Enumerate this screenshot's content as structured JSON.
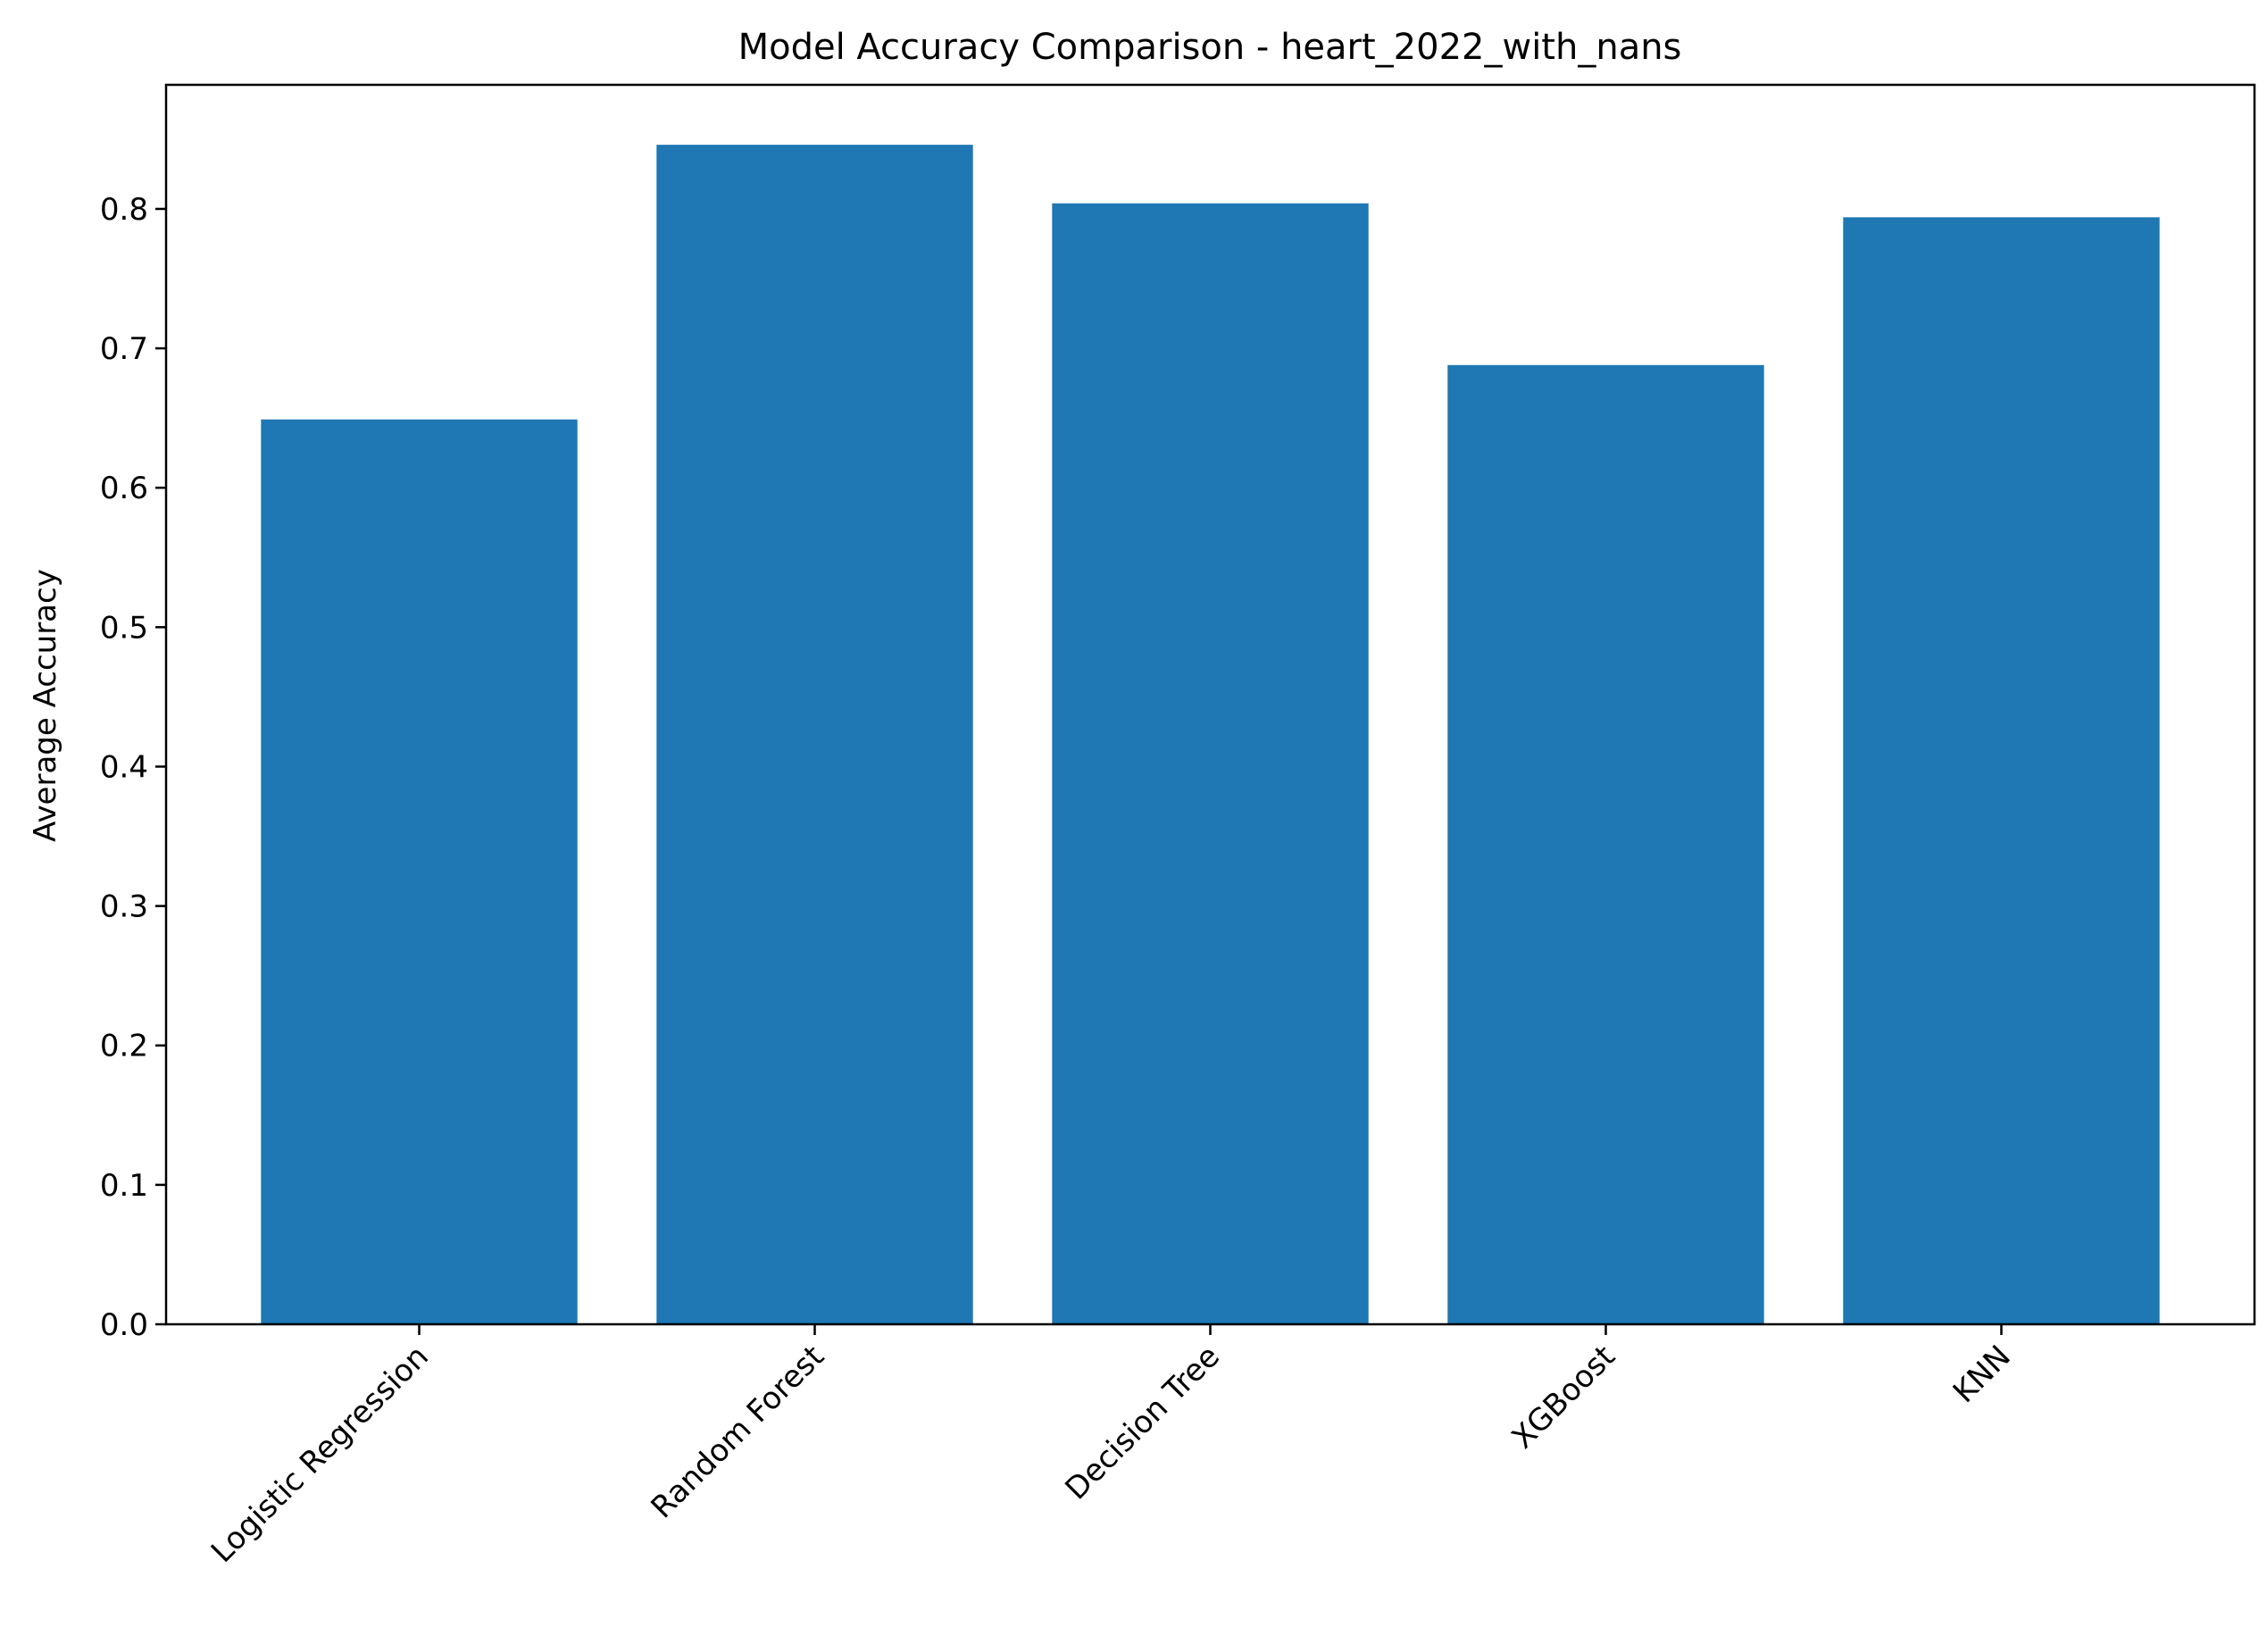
{
  "chart_data": {
    "type": "bar",
    "title": "Model Accuracy Comparison - heart_2022_with_nans",
    "xlabel": "",
    "ylabel": "Average Accuracy",
    "categories": [
      "Logistic Regression",
      "Random Forest",
      "Decision Tree",
      "XGBoost",
      "KNN"
    ],
    "values": [
      0.649,
      0.846,
      0.804,
      0.688,
      0.794
    ],
    "ylim": [
      0,
      0.889
    ],
    "yticks": [
      0.0,
      0.1,
      0.2,
      0.3,
      0.4,
      0.5,
      0.6,
      0.7,
      0.8
    ],
    "ytick_labels": [
      "0.0",
      "0.1",
      "0.2",
      "0.3",
      "0.4",
      "0.5",
      "0.6",
      "0.7",
      "0.8"
    ],
    "bar_color": "#1f77b4",
    "grid": false,
    "legend": "none"
  }
}
